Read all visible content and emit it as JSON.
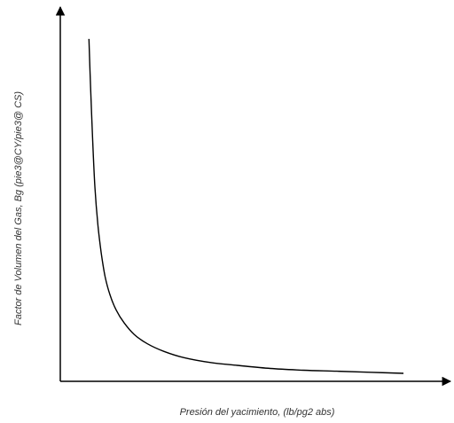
{
  "chart_data": {
    "type": "line",
    "title": "",
    "xlabel": "Presión del yacimiento, (lb/pg2 abs)",
    "ylabel": "Factor de Volumen del Gas, Bg  (pie3@CY/pie3@ CS)",
    "x_ticks": false,
    "y_ticks": false,
    "grid": false,
    "legend": "none",
    "colors": {
      "axis": "#000000",
      "curve": "#000000",
      "label": "#333333"
    },
    "xlim": [
      0,
      100
    ],
    "ylim": [
      0,
      100
    ],
    "series": [
      {
        "x": [
          5.4,
          5.9,
          6.5,
          7.2,
          8.1,
          9.1,
          10.3,
          11.7,
          13.6,
          16.0,
          19.0,
          23.0,
          28.0,
          34.0,
          42.0,
          50.0,
          60.0,
          70.0,
          80.0,
          90.0,
          100.0
        ],
        "y": [
          98.5,
          85.0,
          70.0,
          56.0,
          45.0,
          37.0,
          30.0,
          25.0,
          20.5,
          16.8,
          13.5,
          10.8,
          8.6,
          6.8,
          5.4,
          4.6,
          3.7,
          3.2,
          2.9,
          2.6,
          2.3
        ]
      }
    ]
  }
}
